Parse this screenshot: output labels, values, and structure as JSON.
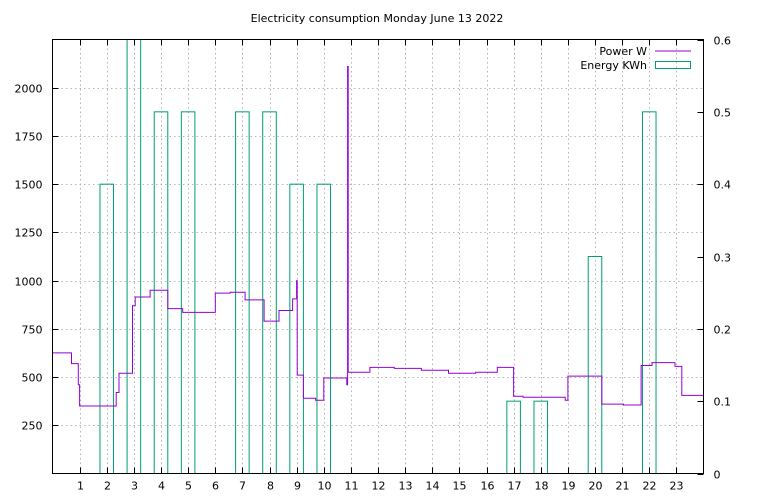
{
  "chart_data": {
    "type": "line",
    "title": "Electricity consumption Monday June 13 2022",
    "x": {
      "range": [
        0,
        24
      ],
      "ticks": [
        1,
        2,
        3,
        4,
        5,
        6,
        7,
        8,
        9,
        10,
        11,
        12,
        13,
        14,
        15,
        16,
        17,
        18,
        19,
        20,
        21,
        22,
        23
      ]
    },
    "y_left": {
      "range": [
        0,
        2250
      ],
      "ticks": [
        250,
        500,
        750,
        1000,
        1250,
        1500,
        1750,
        2000
      ]
    },
    "y_right": {
      "range": [
        0,
        0.6
      ],
      "ticks": [
        0,
        0.1,
        0.2,
        0.3,
        0.4,
        0.5,
        0.6
      ]
    },
    "grid": true,
    "legend_position": "top-right",
    "series": [
      {
        "name": "Power W",
        "axis": "left",
        "style": "step-line",
        "color": "#9400d3",
        "points": [
          [
            0.0,
            625
          ],
          [
            0.7,
            625
          ],
          [
            0.7,
            570
          ],
          [
            0.95,
            570
          ],
          [
            0.95,
            460
          ],
          [
            1.0,
            460
          ],
          [
            1.0,
            350
          ],
          [
            2.35,
            350
          ],
          [
            2.35,
            420
          ],
          [
            2.45,
            420
          ],
          [
            2.45,
            520
          ],
          [
            2.95,
            520
          ],
          [
            2.95,
            870
          ],
          [
            3.05,
            870
          ],
          [
            3.05,
            915
          ],
          [
            3.6,
            915
          ],
          [
            3.6,
            950
          ],
          [
            4.25,
            950
          ],
          [
            4.25,
            855
          ],
          [
            4.8,
            855
          ],
          [
            4.8,
            835
          ],
          [
            6.0,
            835
          ],
          [
            6.0,
            935
          ],
          [
            6.55,
            935
          ],
          [
            6.55,
            940
          ],
          [
            7.1,
            940
          ],
          [
            7.1,
            900
          ],
          [
            7.8,
            900
          ],
          [
            7.8,
            790
          ],
          [
            8.35,
            790
          ],
          [
            8.35,
            845
          ],
          [
            8.85,
            845
          ],
          [
            8.85,
            905
          ],
          [
            9.0,
            905
          ],
          [
            9.0,
            1000
          ],
          [
            9.02,
            1000
          ],
          [
            9.02,
            510
          ],
          [
            9.25,
            510
          ],
          [
            9.25,
            390
          ],
          [
            9.7,
            390
          ],
          [
            9.7,
            380
          ],
          [
            10.0,
            380
          ],
          [
            10.0,
            495
          ],
          [
            10.85,
            495
          ],
          [
            10.85,
            460
          ],
          [
            10.88,
            460
          ],
          [
            10.88,
            2110
          ],
          [
            10.9,
            2110
          ],
          [
            10.9,
            525
          ],
          [
            11.7,
            525
          ],
          [
            11.7,
            550
          ],
          [
            12.6,
            550
          ],
          [
            12.6,
            545
          ],
          [
            13.6,
            545
          ],
          [
            13.6,
            535
          ],
          [
            14.6,
            535
          ],
          [
            14.6,
            520
          ],
          [
            15.6,
            520
          ],
          [
            15.6,
            525
          ],
          [
            16.4,
            525
          ],
          [
            16.4,
            550
          ],
          [
            17.0,
            550
          ],
          [
            17.0,
            400
          ],
          [
            17.35,
            400
          ],
          [
            17.35,
            395
          ],
          [
            18.9,
            395
          ],
          [
            18.9,
            380
          ],
          [
            19.0,
            380
          ],
          [
            19.0,
            505
          ],
          [
            20.25,
            505
          ],
          [
            20.25,
            360
          ],
          [
            21.05,
            360
          ],
          [
            21.05,
            355
          ],
          [
            21.7,
            355
          ],
          [
            21.7,
            560
          ],
          [
            22.1,
            560
          ],
          [
            22.1,
            575
          ],
          [
            22.95,
            575
          ],
          [
            22.95,
            555
          ],
          [
            23.2,
            555
          ],
          [
            23.2,
            405
          ],
          [
            24.0,
            405
          ]
        ]
      },
      {
        "name": "Energy KWh",
        "axis": "right",
        "style": "bars",
        "color": "#009e73",
        "bars": [
          [
            1.75,
            2.25,
            0.4
          ],
          [
            2.75,
            3.25,
            0.6
          ],
          [
            3.75,
            4.25,
            0.5
          ],
          [
            4.75,
            5.25,
            0.5
          ],
          [
            6.75,
            7.25,
            0.5
          ],
          [
            7.75,
            8.25,
            0.5
          ],
          [
            8.75,
            9.25,
            0.4
          ],
          [
            9.75,
            10.25,
            0.4
          ],
          [
            16.75,
            17.25,
            0.1
          ],
          [
            17.75,
            18.25,
            0.1
          ],
          [
            19.75,
            20.25,
            0.3
          ],
          [
            21.75,
            22.25,
            0.5
          ]
        ]
      }
    ]
  }
}
